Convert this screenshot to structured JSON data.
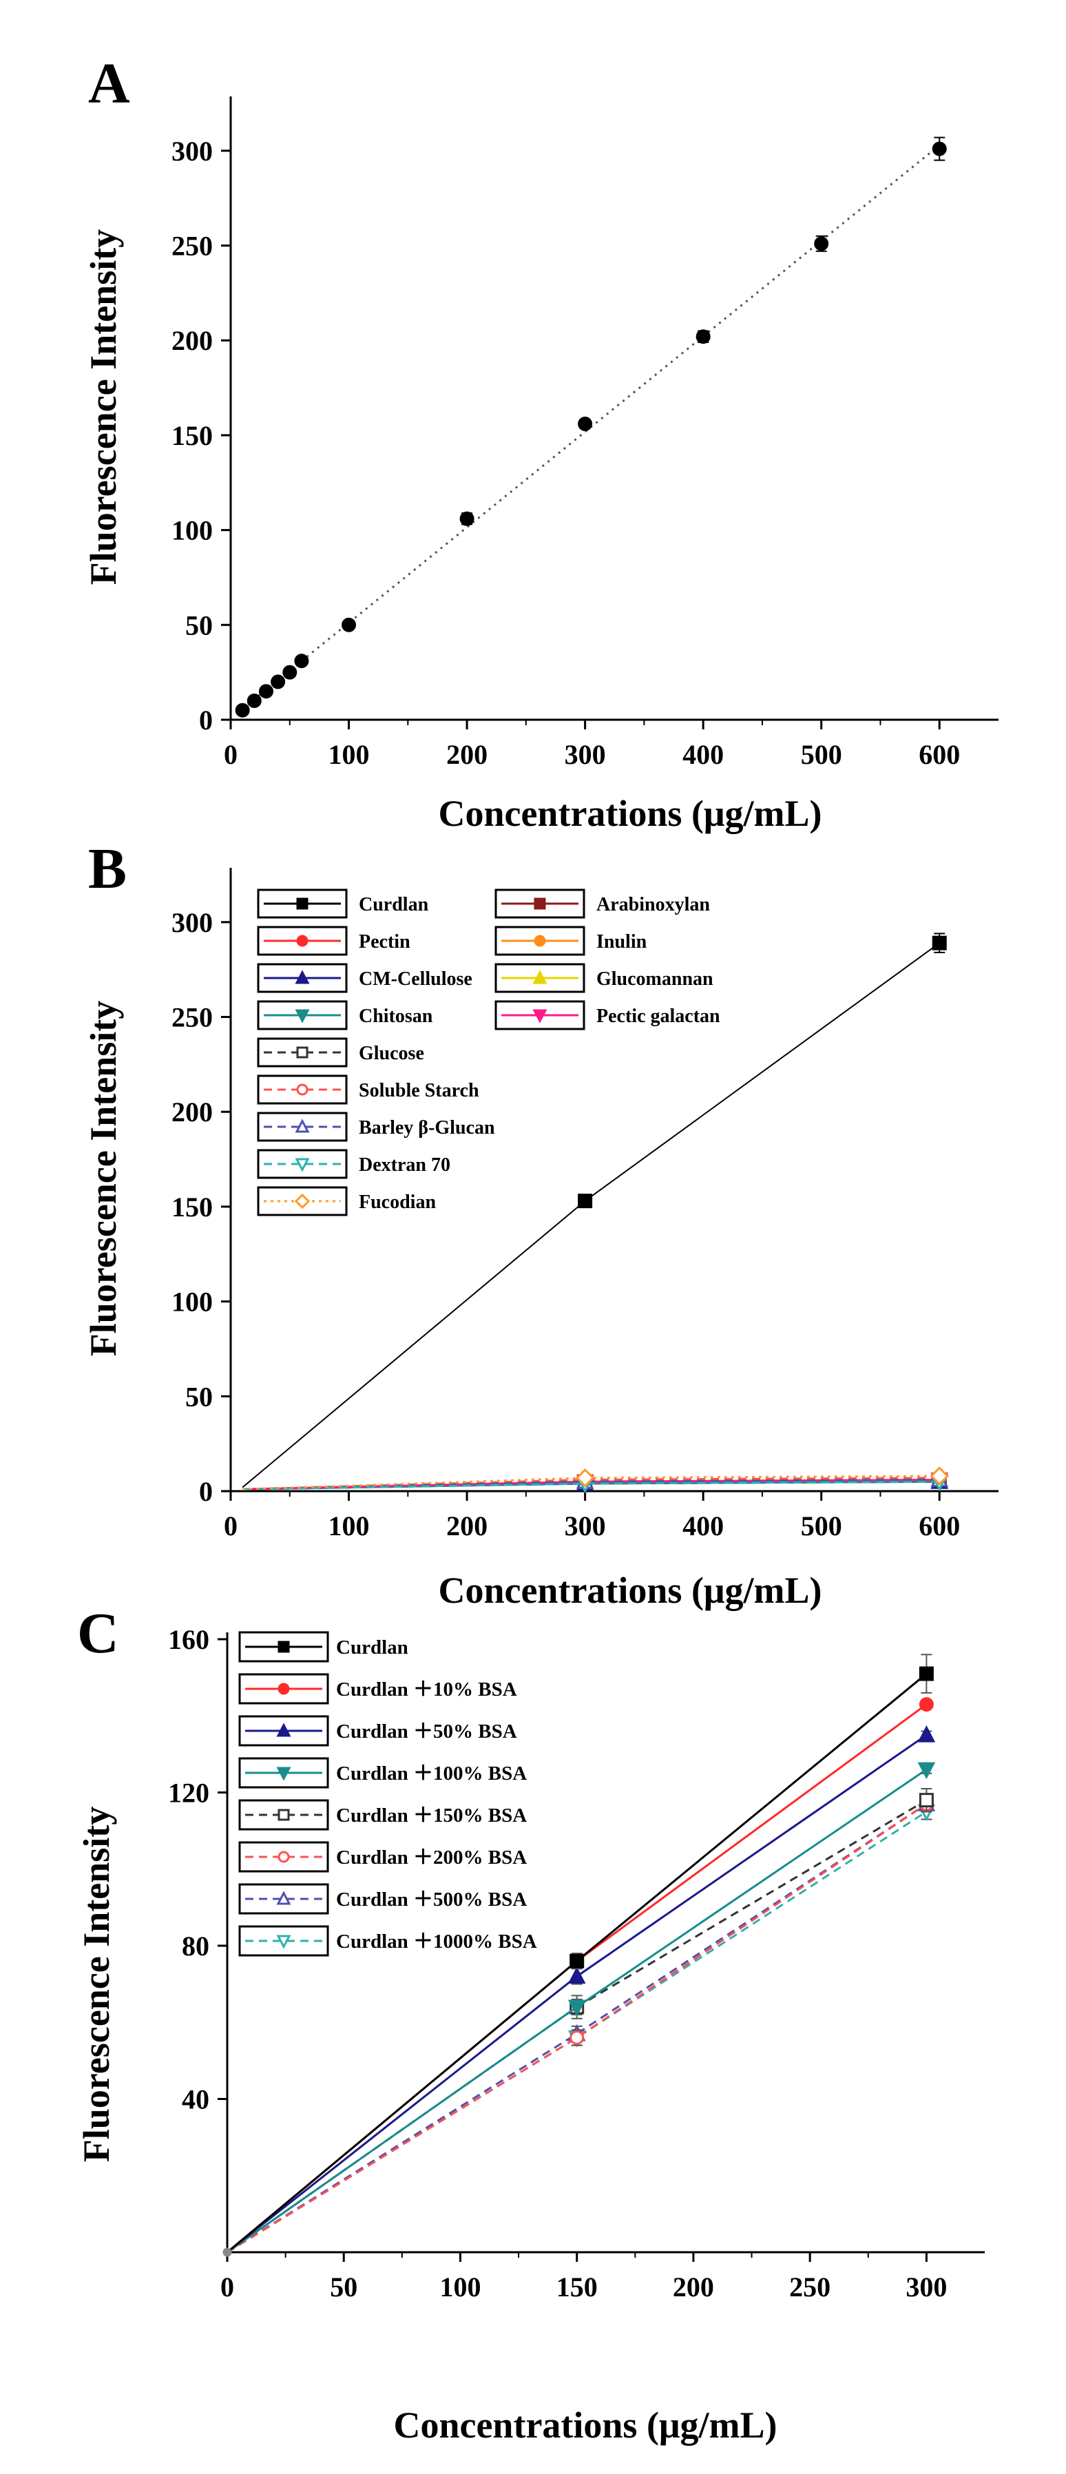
{
  "chart_data": [
    {
      "panel": "A",
      "type": "scatter",
      "xlabel": "Concentrations (μg/mL)",
      "ylabel": "Fluorescence Intensity",
      "xlim": [
        0,
        650
      ],
      "ylim": [
        0,
        325
      ],
      "xticks": [
        0,
        100,
        200,
        300,
        400,
        500,
        600
      ],
      "yticks": [
        0,
        50,
        100,
        150,
        200,
        250,
        300
      ],
      "trendline": "dotted linear fit",
      "series": [
        {
          "x": [
            10,
            20,
            30,
            40,
            50,
            60,
            100,
            200,
            300,
            400,
            500,
            600
          ],
          "y": [
            5,
            10,
            15,
            20,
            25,
            31,
            50,
            106,
            156,
            202,
            251,
            301
          ],
          "error": [
            0.5,
            0.5,
            0.5,
            0.5,
            0.5,
            0.8,
            1,
            3,
            2,
            3,
            4,
            6
          ],
          "color": "#000000",
          "marker": "circle"
        }
      ]
    },
    {
      "panel": "B",
      "type": "line",
      "xlabel": "Concentrations (μg/mL)",
      "ylabel": "Fluorescence Intensity",
      "xlim": [
        0,
        650
      ],
      "ylim": [
        0,
        325
      ],
      "xticks": [
        0,
        100,
        200,
        300,
        400,
        500,
        600
      ],
      "yticks": [
        0,
        50,
        100,
        150,
        200,
        250,
        300
      ],
      "legend_position": "top-left",
      "x": [
        10,
        300,
        600
      ],
      "series": [
        {
          "name": "Curdlan",
          "values": [
            2,
            153,
            289
          ],
          "color": "#000000",
          "marker": "square",
          "dashed": false
        },
        {
          "name": "Arabinoxylan",
          "values": [
            1,
            5,
            6
          ],
          "color": "#8b1a1a",
          "marker": "square",
          "dashed": false
        },
        {
          "name": "Pectin",
          "values": [
            1,
            5,
            6
          ],
          "color": "#ff2a2a",
          "marker": "circle",
          "dashed": false
        },
        {
          "name": "Inulin",
          "values": [
            1,
            5,
            6
          ],
          "color": "#ff8c1a",
          "marker": "circle",
          "dashed": false
        },
        {
          "name": "CM-Cellulose",
          "values": [
            1,
            4,
            5
          ],
          "color": "#1a1a8c",
          "marker": "triangle",
          "dashed": false
        },
        {
          "name": "Glucomannan",
          "values": [
            1,
            5,
            6
          ],
          "color": "#e6d400",
          "marker": "triangle",
          "dashed": false
        },
        {
          "name": "Chitosan",
          "values": [
            1,
            4,
            5
          ],
          "color": "#1a8c8c",
          "marker": "triangle-down",
          "dashed": false
        },
        {
          "name": "Pectic galactan",
          "values": [
            1,
            5,
            6
          ],
          "color": "#ff1a8c",
          "marker": "triangle-down",
          "dashed": false
        },
        {
          "name": "Glucose",
          "values": [
            1,
            5,
            6
          ],
          "color": "#333333",
          "marker": "square-open",
          "dashed": true
        },
        {
          "name": "Soluble Starch",
          "values": [
            1,
            6,
            7
          ],
          "color": "#ff5050",
          "marker": "circle-open",
          "dashed": true
        },
        {
          "name": "Barley β-Glucan",
          "values": [
            1,
            5,
            6
          ],
          "color": "#5050b0",
          "marker": "triangle-open",
          "dashed": true
        },
        {
          "name": "Dextran 70",
          "values": [
            1,
            4,
            5
          ],
          "color": "#30b0b0",
          "marker": "triangle-down-open",
          "dashed": true
        },
        {
          "name": "Fucodian",
          "values": [
            1,
            7,
            8
          ],
          "color": "#ff9a2a",
          "marker": "diamond-open",
          "dashed": "dotted"
        }
      ]
    },
    {
      "panel": "C",
      "type": "line",
      "xlabel": "Concentrations (μg/mL)",
      "ylabel": "Fluorescence Intensity",
      "xlim": [
        0,
        325
      ],
      "ylim": [
        0,
        160
      ],
      "xticks": [
        0,
        50,
        100,
        150,
        200,
        250,
        300
      ],
      "yticks": [
        40,
        80,
        120,
        160
      ],
      "legend_position": "top-left",
      "x": [
        0,
        150,
        300
      ],
      "series": [
        {
          "name": "Curdlan",
          "values": [
            0,
            76,
            151
          ],
          "error": [
            0,
            1,
            5
          ],
          "color": "#000000",
          "marker": "square",
          "dashed": false
        },
        {
          "name": "Curdlan ＋10% BSA",
          "values": [
            0,
            76,
            143
          ],
          "error": [
            0,
            2,
            1
          ],
          "color": "#ff2a2a",
          "marker": "circle",
          "dashed": false
        },
        {
          "name": "Curdlan ＋50% BSA",
          "values": [
            0,
            72,
            135
          ],
          "error": [
            0,
            2,
            1
          ],
          "color": "#1a1a8c",
          "marker": "triangle",
          "dashed": false
        },
        {
          "name": "Curdlan ＋100% BSA",
          "values": [
            0,
            64,
            126
          ],
          "error": [
            0,
            2,
            1
          ],
          "color": "#1a8c8c",
          "marker": "triangle-down",
          "dashed": false
        },
        {
          "name": "Curdlan ＋150% BSA",
          "values": [
            0,
            64,
            118
          ],
          "error": [
            0,
            3,
            3
          ],
          "color": "#333333",
          "marker": "square-open",
          "dashed": true
        },
        {
          "name": "Curdlan ＋200% BSA",
          "values": [
            0,
            56,
            117
          ],
          "error": [
            0,
            2,
            2
          ],
          "color": "#ff5050",
          "marker": "circle-open",
          "dashed": true
        },
        {
          "name": "Curdlan ＋500% BSA",
          "values": [
            0,
            57,
            117
          ],
          "error": [
            0,
            2,
            2
          ],
          "color": "#5050b0",
          "marker": "triangle-open",
          "dashed": true
        },
        {
          "name": "Curdlan ＋1000% BSA",
          "values": [
            0,
            56,
            115
          ],
          "error": [
            0,
            2,
            2
          ],
          "color": "#30b0b0",
          "marker": "triangle-down-open",
          "dashed": true
        }
      ]
    }
  ],
  "labels": {
    "panelA": "A",
    "panelB": "B",
    "panelC": "C",
    "ylabel": "Fluorescence Intensity",
    "xlabel": "Concentrations (μg/mL)"
  }
}
